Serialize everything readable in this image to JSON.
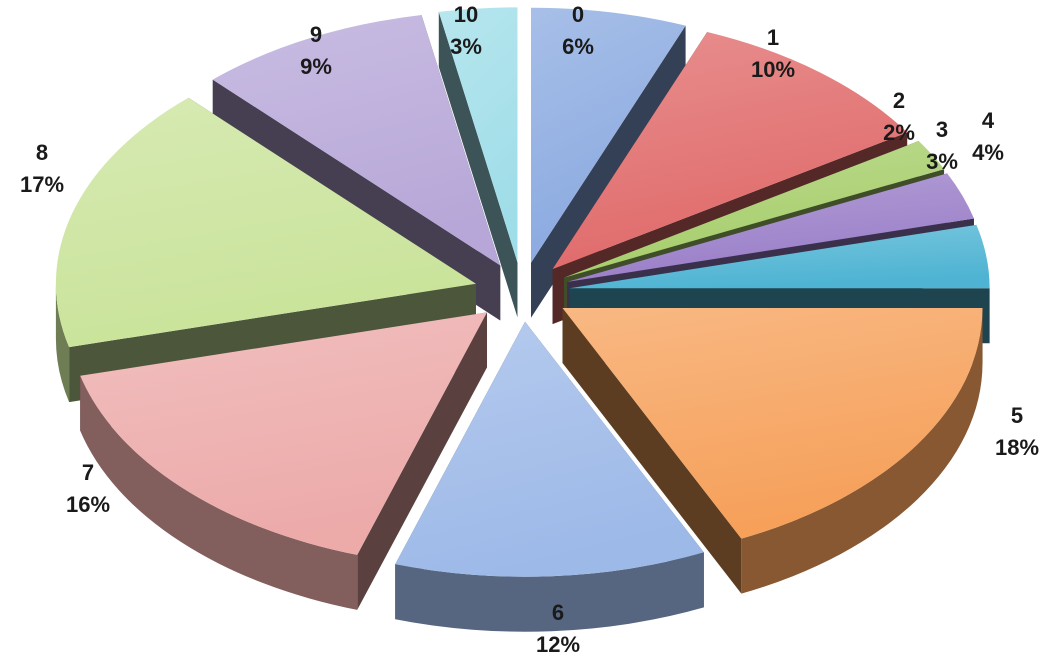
{
  "chart_data": {
    "type": "pie",
    "style": "3d-exploded",
    "title": "",
    "legend": "none",
    "slices": [
      {
        "category": "0",
        "percent": "6%",
        "value": 6,
        "color": "#8aa9e0"
      },
      {
        "category": "1",
        "percent": "10%",
        "value": 10,
        "color": "#e06a6a"
      },
      {
        "category": "2",
        "percent": "2%",
        "value": 2,
        "color": "#a6cd6a"
      },
      {
        "category": "3",
        "percent": "3%",
        "value": 3,
        "color": "#9a7ec8"
      },
      {
        "category": "4",
        "percent": "4%",
        "value": 4,
        "color": "#4fb4d3"
      },
      {
        "category": "5",
        "percent": "18%",
        "value": 18,
        "color": "#f6a05a"
      },
      {
        "category": "6",
        "percent": "12%",
        "value": 12,
        "color": "#9db9e8"
      },
      {
        "category": "7",
        "percent": "16%",
        "value": 16,
        "color": "#ecaaa9"
      },
      {
        "category": "8",
        "percent": "17%",
        "value": 17,
        "color": "#c9e39a"
      },
      {
        "category": "9",
        "percent": "9%",
        "value": 9,
        "color": "#b7a7d8"
      },
      {
        "category": "10",
        "percent": "3%",
        "value": 3,
        "color": "#9fdde8"
      }
    ]
  }
}
